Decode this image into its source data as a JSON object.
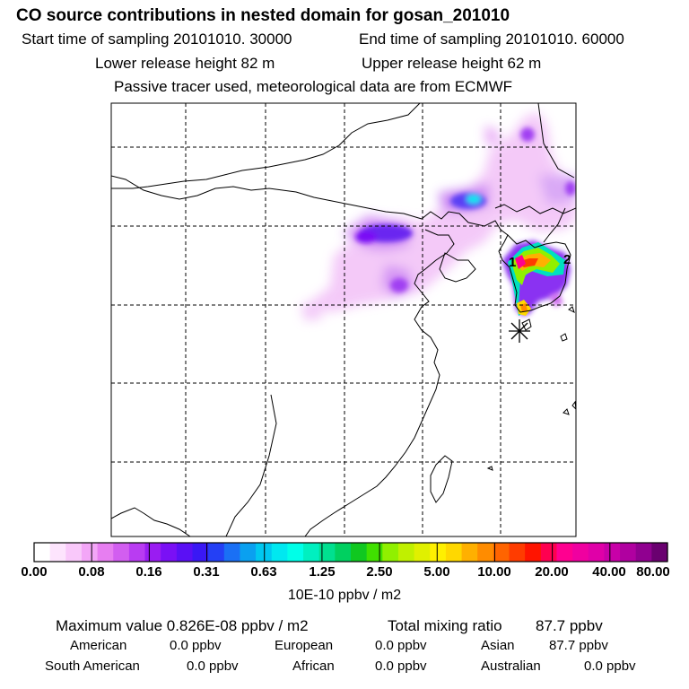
{
  "title": "CO  source contributions in nested domain for gosan_201010",
  "header": {
    "start_label": "Start time of sampling 20101010. 30000",
    "end_label": "End time of sampling 20101010. 60000",
    "lower_label": "Lower release height   82 m",
    "upper_label": "Upper release height   62 m",
    "tracer_note": "Passive tracer used, meteorological data are from ECMWF"
  },
  "map": {
    "markers": [
      {
        "label": "1"
      },
      {
        "label": "2"
      }
    ],
    "receptor_symbol": "asterisk-icon"
  },
  "colorbar": {
    "tick_labels": [
      "0.00",
      "0.08",
      "0.16",
      "0.31",
      "0.63",
      "1.25",
      "2.50",
      "5.00",
      "10.00",
      "20.00",
      "40.00",
      "80.00"
    ],
    "unit": "10E-10 ppbv / m2",
    "colors": [
      "#ffffff",
      "#fde4fd",
      "#f9c8fa",
      "#f3a6f7",
      "#e77ef1",
      "#d25ef0",
      "#b93cf2",
      "#9a1cf2",
      "#7a10f5",
      "#5a10f5",
      "#3a18f5",
      "#2440f5",
      "#1a70f5",
      "#0aa0f0",
      "#00c8f0",
      "#00e8f0",
      "#00ffe8",
      "#00f0c0",
      "#00e090",
      "#00d060",
      "#10c820",
      "#40e000",
      "#90f000",
      "#c0f000",
      "#e0f000",
      "#fff000",
      "#ffd800",
      "#ffb000",
      "#ff8c00",
      "#ff6400",
      "#ff3c00",
      "#ff1400",
      "#ff0050",
      "#ff0090",
      "#f000a0",
      "#e000a8",
      "#c800a8",
      "#b000a0",
      "#900090",
      "#6a0070"
    ]
  },
  "summary": {
    "max_label": "Maximum value  0.826E-08 ppbv / m2",
    "total_label": "Total mixing ratio",
    "total_value": "87.7 ppbv"
  },
  "regions": [
    {
      "name": "American",
      "value": "0.0 ppbv"
    },
    {
      "name": "European",
      "value": "0.0 ppbv"
    },
    {
      "name": "Asian",
      "value": "87.7 ppbv"
    },
    {
      "name": "South American",
      "value": "0.0 ppbv"
    },
    {
      "name": "African",
      "value": "0.0 ppbv"
    },
    {
      "name": "Australian",
      "value": "0.0 ppbv"
    }
  ]
}
